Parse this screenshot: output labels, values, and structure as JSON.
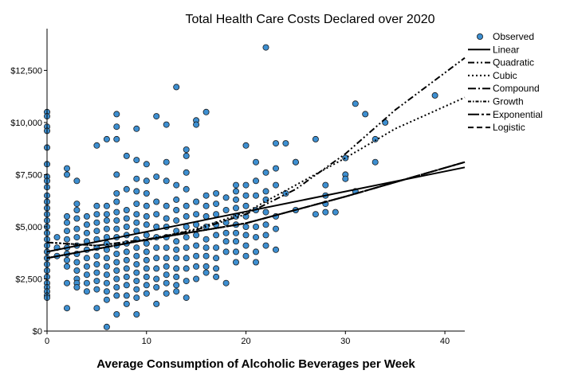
{
  "chart_data": {
    "type": "scatter",
    "title": "Total Health Care Costs Declared over 2020",
    "xlabel": "Average Consumption of Alcoholic Beverages per Week",
    "ylabel": "",
    "xlim": [
      0,
      42
    ],
    "ylim": [
      0,
      14500
    ],
    "x_ticks": [
      0,
      10,
      20,
      30,
      40
    ],
    "y_ticks": [
      0,
      2500,
      5000,
      7500,
      10000,
      12500
    ],
    "x_tick_labels": [
      "0",
      "10",
      "20",
      "30",
      "40"
    ],
    "y_tick_labels": [
      "$0",
      "$2,500",
      "$5,000",
      "$7,500",
      "$10,000",
      "$12,500"
    ],
    "grid": false,
    "legend_position": "right",
    "colors": {
      "observed_fill": "#3d8fd1",
      "observed_edge": "#1a1a1a",
      "lines": "#000000"
    },
    "legend": [
      {
        "label": "Observed",
        "kind": "marker"
      },
      {
        "label": "Linear",
        "kind": "solid"
      },
      {
        "label": "Quadratic",
        "kind": "dashdotdot"
      },
      {
        "label": "Cubic",
        "kind": "dotted"
      },
      {
        "label": "Compound",
        "kind": "dashdot"
      },
      {
        "label": "Growth",
        "kind": "dashdotdense"
      },
      {
        "label": "Exponential",
        "kind": "dashdotlong"
      },
      {
        "label": "Logistic",
        "kind": "dashed"
      }
    ],
    "fit_lines": [
      {
        "name": "Linear",
        "style": "solid",
        "points": [
          [
            0,
            3800
          ],
          [
            42,
            7850
          ]
        ]
      },
      {
        "name": "Quadratic",
        "style": "dashdotdot",
        "points": [
          [
            0,
            4250
          ],
          [
            5,
            4100
          ],
          [
            10,
            4400
          ],
          [
            15,
            4850
          ],
          [
            20,
            5600
          ],
          [
            25,
            6800
          ],
          [
            30,
            8500
          ],
          [
            35,
            10600
          ],
          [
            42,
            13100
          ]
        ]
      },
      {
        "name": "Cubic",
        "style": "dotted",
        "points": [
          [
            0,
            4250
          ],
          [
            5,
            4100
          ],
          [
            10,
            4350
          ],
          [
            15,
            4900
          ],
          [
            20,
            5700
          ],
          [
            25,
            7000
          ],
          [
            30,
            8300
          ],
          [
            35,
            9700
          ],
          [
            42,
            11200
          ]
        ]
      },
      {
        "name": "Compound",
        "style": "dashdot",
        "points": [
          [
            0,
            3500
          ],
          [
            10,
            4380
          ],
          [
            20,
            5170
          ],
          [
            30,
            6450
          ],
          [
            42,
            8100
          ]
        ]
      },
      {
        "name": "Growth",
        "style": "dashdotdense",
        "points": [
          [
            0,
            3500
          ],
          [
            10,
            4380
          ],
          [
            20,
            5170
          ],
          [
            30,
            6450
          ],
          [
            42,
            8100
          ]
        ]
      },
      {
        "name": "Exponential",
        "style": "dashdotlong",
        "points": [
          [
            0,
            3500
          ],
          [
            10,
            4380
          ],
          [
            20,
            5170
          ],
          [
            30,
            6450
          ],
          [
            42,
            8100
          ]
        ]
      },
      {
        "name": "Logistic",
        "style": "dashed",
        "points": [
          [
            0,
            3500
          ],
          [
            10,
            4380
          ],
          [
            20,
            5170
          ],
          [
            30,
            6450
          ],
          [
            42,
            8100
          ]
        ]
      }
    ],
    "observed": [
      [
        0,
        10500
      ],
      [
        0,
        10300
      ],
      [
        0,
        9800
      ],
      [
        0,
        9600
      ],
      [
        0,
        8800
      ],
      [
        0,
        8000
      ],
      [
        0,
        7400
      ],
      [
        0,
        7200
      ],
      [
        0,
        6900
      ],
      [
        0,
        6500
      ],
      [
        0,
        6200
      ],
      [
        0,
        5900
      ],
      [
        0,
        5600
      ],
      [
        0,
        5300
      ],
      [
        0,
        5000
      ],
      [
        0,
        4700
      ],
      [
        0,
        4400
      ],
      [
        0,
        4100
      ],
      [
        0,
        3800
      ],
      [
        0,
        3500
      ],
      [
        0,
        3200
      ],
      [
        0,
        2900
      ],
      [
        0,
        2600
      ],
      [
        0,
        2300
      ],
      [
        0,
        2100
      ],
      [
        0,
        1900
      ],
      [
        0,
        1700
      ],
      [
        0,
        1600
      ],
      [
        1,
        4500
      ],
      [
        1,
        4000
      ],
      [
        1,
        3600
      ],
      [
        2,
        7800
      ],
      [
        2,
        7500
      ],
      [
        2,
        5500
      ],
      [
        2,
        5200
      ],
      [
        2,
        4800
      ],
      [
        2,
        4400
      ],
      [
        2,
        4000
      ],
      [
        2,
        3700
      ],
      [
        2,
        3400
      ],
      [
        2,
        3100
      ],
      [
        2,
        2300
      ],
      [
        2,
        1100
      ],
      [
        3,
        7200
      ],
      [
        3,
        6100
      ],
      [
        3,
        5800
      ],
      [
        3,
        5400
      ],
      [
        3,
        4900
      ],
      [
        3,
        4500
      ],
      [
        3,
        4100
      ],
      [
        3,
        3700
      ],
      [
        3,
        3300
      ],
      [
        3,
        2900
      ],
      [
        3,
        2500
      ],
      [
        3,
        2300
      ],
      [
        3,
        2100
      ],
      [
        4,
        5500
      ],
      [
        4,
        5100
      ],
      [
        4,
        4700
      ],
      [
        4,
        4300
      ],
      [
        4,
        3900
      ],
      [
        4,
        3500
      ],
      [
        4,
        3100
      ],
      [
        4,
        2700
      ],
      [
        4,
        2300
      ],
      [
        4,
        1900
      ],
      [
        5,
        8900
      ],
      [
        5,
        6000
      ],
      [
        5,
        5600
      ],
      [
        5,
        5200
      ],
      [
        5,
        4800
      ],
      [
        5,
        4400
      ],
      [
        5,
        4000
      ],
      [
        5,
        3600
      ],
      [
        5,
        3200
      ],
      [
        5,
        2800
      ],
      [
        5,
        2400
      ],
      [
        5,
        2000
      ],
      [
        5,
        1100
      ],
      [
        6,
        9200
      ],
      [
        6,
        6000
      ],
      [
        6,
        5600
      ],
      [
        6,
        5300
      ],
      [
        6,
        4900
      ],
      [
        6,
        4500
      ],
      [
        6,
        4200
      ],
      [
        6,
        3900
      ],
      [
        6,
        3500
      ],
      [
        6,
        3100
      ],
      [
        6,
        2700
      ],
      [
        6,
        2300
      ],
      [
        6,
        1900
      ],
      [
        6,
        1500
      ],
      [
        6,
        200
      ],
      [
        7,
        10400
      ],
      [
        7,
        9800
      ],
      [
        7,
        9200
      ],
      [
        7,
        7500
      ],
      [
        7,
        6600
      ],
      [
        7,
        6200
      ],
      [
        7,
        5700
      ],
      [
        7,
        5300
      ],
      [
        7,
        4900
      ],
      [
        7,
        4500
      ],
      [
        7,
        4100
      ],
      [
        7,
        3700
      ],
      [
        7,
        3300
      ],
      [
        7,
        2900
      ],
      [
        7,
        2500
      ],
      [
        7,
        2100
      ],
      [
        7,
        1700
      ],
      [
        7,
        800
      ],
      [
        8,
        8400
      ],
      [
        8,
        6800
      ],
      [
        8,
        5800
      ],
      [
        8,
        5400
      ],
      [
        8,
        5000
      ],
      [
        8,
        4600
      ],
      [
        8,
        4200
      ],
      [
        8,
        3800
      ],
      [
        8,
        3400
      ],
      [
        8,
        3000
      ],
      [
        8,
        2600
      ],
      [
        8,
        2200
      ],
      [
        8,
        1700
      ],
      [
        8,
        1300
      ],
      [
        9,
        9700
      ],
      [
        9,
        8200
      ],
      [
        9,
        7300
      ],
      [
        9,
        6700
      ],
      [
        9,
        6100
      ],
      [
        9,
        5600
      ],
      [
        9,
        5200
      ],
      [
        9,
        4800
      ],
      [
        9,
        4400
      ],
      [
        9,
        4000
      ],
      [
        9,
        3600
      ],
      [
        9,
        3200
      ],
      [
        9,
        2800
      ],
      [
        9,
        2400
      ],
      [
        9,
        2000
      ],
      [
        9,
        1600
      ],
      [
        9,
        800
      ],
      [
        10,
        8000
      ],
      [
        10,
        7200
      ],
      [
        10,
        6600
      ],
      [
        10,
        6000
      ],
      [
        10,
        5500
      ],
      [
        10,
        5100
      ],
      [
        10,
        4600
      ],
      [
        10,
        4200
      ],
      [
        10,
        3800
      ],
      [
        10,
        3400
      ],
      [
        10,
        3000
      ],
      [
        10,
        2600
      ],
      [
        10,
        2200
      ],
      [
        10,
        1800
      ],
      [
        11,
        10300
      ],
      [
        11,
        7400
      ],
      [
        11,
        6200
      ],
      [
        11,
        5600
      ],
      [
        11,
        5000
      ],
      [
        11,
        4500
      ],
      [
        11,
        4000
      ],
      [
        11,
        3500
      ],
      [
        11,
        3000
      ],
      [
        11,
        2500
      ],
      [
        11,
        2100
      ],
      [
        11,
        1300
      ],
      [
        12,
        9900
      ],
      [
        12,
        8100
      ],
      [
        12,
        7200
      ],
      [
        12,
        6000
      ],
      [
        12,
        5400
      ],
      [
        12,
        5000
      ],
      [
        12,
        4500
      ],
      [
        12,
        4000
      ],
      [
        12,
        3500
      ],
      [
        12,
        3100
      ],
      [
        12,
        2700
      ],
      [
        12,
        2300
      ],
      [
        12,
        1800
      ],
      [
        13,
        11700
      ],
      [
        13,
        7000
      ],
      [
        13,
        6300
      ],
      [
        13,
        5800
      ],
      [
        13,
        5300
      ],
      [
        13,
        4800
      ],
      [
        13,
        4300
      ],
      [
        13,
        3900
      ],
      [
        13,
        3500
      ],
      [
        13,
        3000
      ],
      [
        13,
        2600
      ],
      [
        13,
        2200
      ],
      [
        13,
        1900
      ],
      [
        14,
        8700
      ],
      [
        14,
        8400
      ],
      [
        14,
        7600
      ],
      [
        14,
        6800
      ],
      [
        14,
        6000
      ],
      [
        14,
        5500
      ],
      [
        14,
        5000
      ],
      [
        14,
        4500
      ],
      [
        14,
        4000
      ],
      [
        14,
        3500
      ],
      [
        14,
        3000
      ],
      [
        14,
        2400
      ],
      [
        14,
        1600
      ],
      [
        15,
        10100
      ],
      [
        15,
        9900
      ],
      [
        15,
        6200
      ],
      [
        15,
        5600
      ],
      [
        15,
        5100
      ],
      [
        15,
        4600
      ],
      [
        15,
        4100
      ],
      [
        15,
        3600
      ],
      [
        15,
        3100
      ],
      [
        15,
        2500
      ],
      [
        16,
        10500
      ],
      [
        16,
        6500
      ],
      [
        16,
        6000
      ],
      [
        16,
        5500
      ],
      [
        16,
        5000
      ],
      [
        16,
        4400
      ],
      [
        16,
        4000
      ],
      [
        16,
        3600
      ],
      [
        16,
        3100
      ],
      [
        16,
        2800
      ],
      [
        17,
        6600
      ],
      [
        17,
        6100
      ],
      [
        17,
        5600
      ],
      [
        17,
        5100
      ],
      [
        17,
        4600
      ],
      [
        17,
        4000
      ],
      [
        17,
        3500
      ],
      [
        17,
        3000
      ],
      [
        17,
        2600
      ],
      [
        18,
        6400
      ],
      [
        18,
        5800
      ],
      [
        18,
        5200
      ],
      [
        18,
        4700
      ],
      [
        18,
        4300
      ],
      [
        18,
        3800
      ],
      [
        18,
        2300
      ],
      [
        19,
        7000
      ],
      [
        19,
        6700
      ],
      [
        19,
        6300
      ],
      [
        19,
        5900
      ],
      [
        19,
        5500
      ],
      [
        19,
        5100
      ],
      [
        19,
        4700
      ],
      [
        19,
        4300
      ],
      [
        19,
        3800
      ],
      [
        19,
        3300
      ],
      [
        20,
        8900
      ],
      [
        20,
        7000
      ],
      [
        20,
        6500
      ],
      [
        20,
        6000
      ],
      [
        20,
        5500
      ],
      [
        20,
        5000
      ],
      [
        20,
        4600
      ],
      [
        20,
        4100
      ],
      [
        20,
        3600
      ],
      [
        21,
        8100
      ],
      [
        21,
        7200
      ],
      [
        21,
        6500
      ],
      [
        21,
        5800
      ],
      [
        21,
        5000
      ],
      [
        21,
        4500
      ],
      [
        21,
        3800
      ],
      [
        21,
        3300
      ],
      [
        22,
        13600
      ],
      [
        22,
        7600
      ],
      [
        22,
        6700
      ],
      [
        22,
        6300
      ],
      [
        22,
        5700
      ],
      [
        22,
        5100
      ],
      [
        22,
        4600
      ],
      [
        22,
        4100
      ],
      [
        23,
        9000
      ],
      [
        23,
        7800
      ],
      [
        23,
        7000
      ],
      [
        23,
        5500
      ],
      [
        23,
        4900
      ],
      [
        23,
        3900
      ],
      [
        24,
        9000
      ],
      [
        24,
        6600
      ],
      [
        25,
        8100
      ],
      [
        25,
        8100
      ],
      [
        25,
        5800
      ],
      [
        27,
        9200
      ],
      [
        27,
        5600
      ],
      [
        28,
        7000
      ],
      [
        28,
        6500
      ],
      [
        28,
        6100
      ],
      [
        28,
        5700
      ],
      [
        29,
        5700
      ],
      [
        30,
        8300
      ],
      [
        30,
        7500
      ],
      [
        30,
        7300
      ],
      [
        31,
        10900
      ],
      [
        31,
        6700
      ],
      [
        32,
        10400
      ],
      [
        33,
        9200
      ],
      [
        33,
        8100
      ],
      [
        34,
        10000
      ],
      [
        39,
        11300
      ]
    ]
  }
}
